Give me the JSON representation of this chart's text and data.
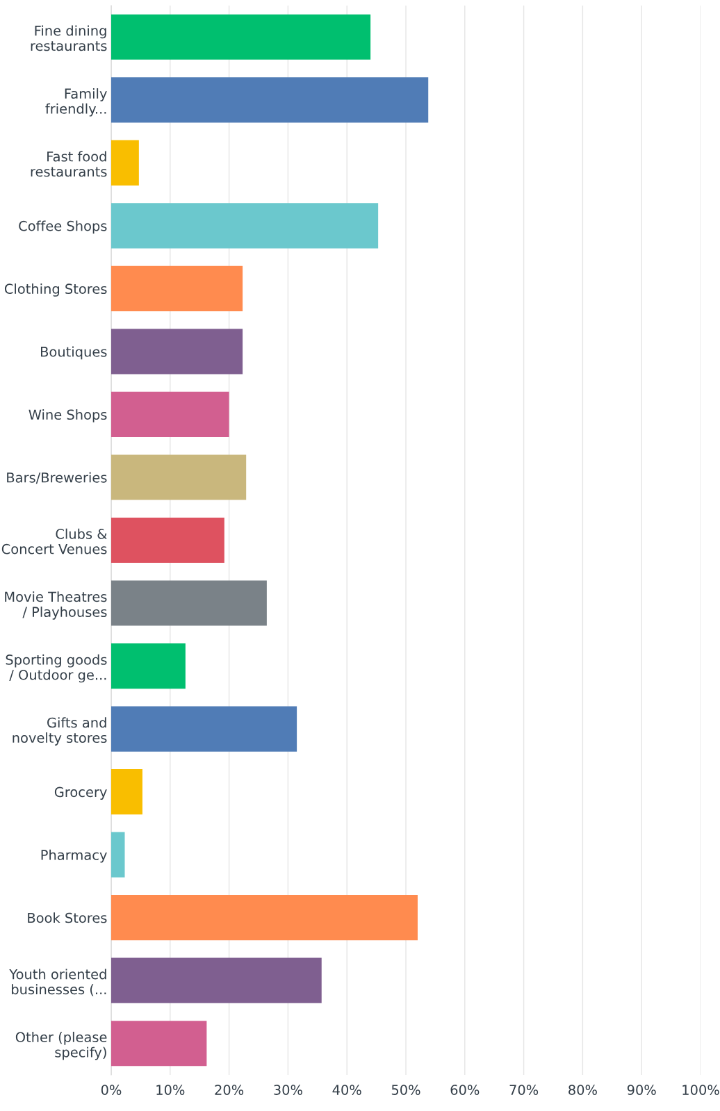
{
  "chart_data": {
    "type": "bar",
    "orientation": "horizontal",
    "categories": [
      "Fine dining\nrestaurants",
      "Family\nfriendly...",
      "Fast food\nrestaurants",
      "Coffee Shops",
      "Clothing Stores",
      "Boutiques",
      "Wine Shops",
      "Bars/Breweries",
      "Clubs &\nConcert Venues",
      "Movie Theatres\n/ Playhouses",
      "Sporting goods\n/ Outdoor ge...",
      "Gifts and\nnovelty stores",
      "Grocery",
      "Pharmacy",
      "Book Stores",
      "Youth oriented\nbusinesses (...",
      "Other (please\nspecify)"
    ],
    "values": [
      44.0,
      53.8,
      4.7,
      45.3,
      22.3,
      22.3,
      20.0,
      22.9,
      19.2,
      26.4,
      12.6,
      31.5,
      5.3,
      2.3,
      52.0,
      35.7,
      16.2
    ],
    "colors": [
      "#00bf6f",
      "#507cb6",
      "#f9be00",
      "#6bc8cd",
      "#ff8b4f",
      "#7f5f90",
      "#d25f90",
      "#c9b77d",
      "#de5260",
      "#7a8288",
      "#00bf6f",
      "#507cb6",
      "#f9be00",
      "#6bc8cd",
      "#ff8b4f",
      "#7f5f90",
      "#d25f90"
    ],
    "xlim": [
      0,
      100
    ],
    "xticks": [
      {
        "value": 0,
        "label": "0%"
      },
      {
        "value": 10,
        "label": "10%"
      },
      {
        "value": 20,
        "label": "20%"
      },
      {
        "value": 30,
        "label": "30%"
      },
      {
        "value": 40,
        "label": "40%"
      },
      {
        "value": 50,
        "label": "50%"
      },
      {
        "value": 60,
        "label": "60%"
      },
      {
        "value": 70,
        "label": "70%"
      },
      {
        "value": 80,
        "label": "80%"
      },
      {
        "value": 90,
        "label": "90%"
      },
      {
        "value": 100,
        "label": "100%"
      }
    ],
    "grid": "x"
  }
}
